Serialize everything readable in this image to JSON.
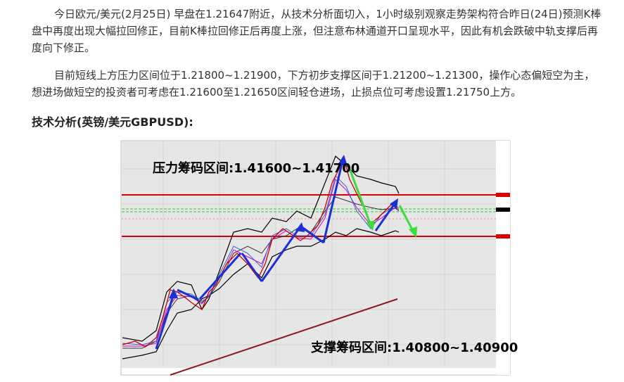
{
  "paragraphs": [
    "今日欧元/美元(2月25日) 早盘在1.21647附近，从技术分析面切入，1小时级别观察走势架构符合昨日(24日)预测K棒盘中再度出现大幅拉回修正，目前K棒拉回修正后再度上涨，但注意布林通道开口呈现水平，因此有机会跌破中轨支撑后再度向下修正。",
    "目前短线上方压力区间位于1.21800~1.21900，下方初步支撑区间于1.21200~1.21300，操作心态偏短空为主，想进场做短空的投资者可考虑在1.21600至1.21650区间轻仓进场，止损点位可考虑设置1.21750上方。"
  ],
  "heading": "技术分析(英镑/美元GBPUSD):",
  "chart_image": {
    "annotations": [
      "压力筹码区间:1.41600~1.41700",
      "支撑筹码区间:1.40800~1.40900"
    ]
  }
}
